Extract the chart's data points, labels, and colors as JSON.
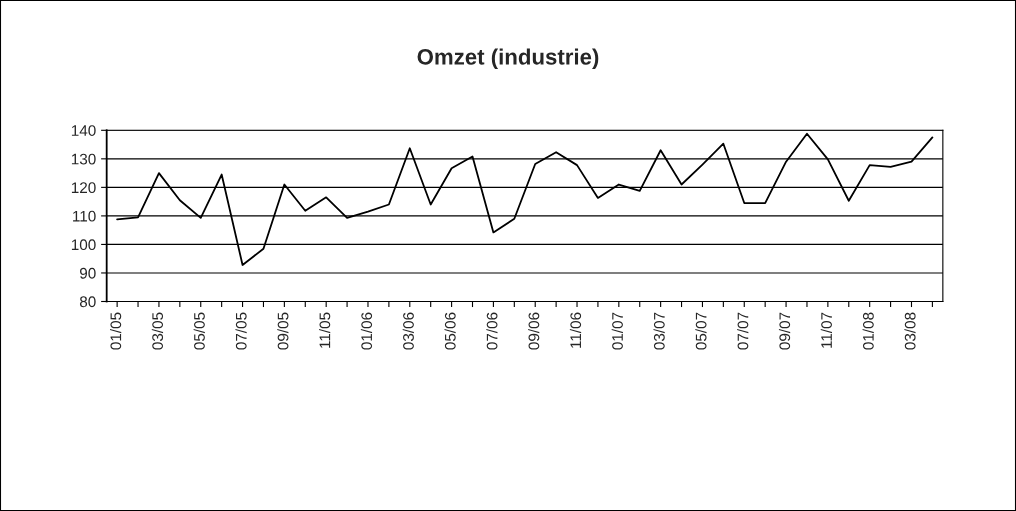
{
  "chart_data": {
    "type": "line",
    "title": "Omzet (industrie)",
    "categories": [
      "01/05",
      null,
      "03/05",
      null,
      "05/05",
      null,
      "07/05",
      null,
      "09/05",
      null,
      "11/05",
      null,
      "01/06",
      null,
      "03/06",
      null,
      "05/06",
      null,
      "07/06",
      null,
      "09/06",
      null,
      "11/06",
      null,
      "01/07",
      null,
      "03/07",
      null,
      "05/07",
      null,
      "07/07",
      null,
      "09/07",
      null,
      "11/07",
      null,
      "01/08",
      null,
      "03/08",
      null
    ],
    "series": [
      {
        "color": "#000000",
        "values": [
          108.8,
          109.5,
          125,
          115.5,
          109.3,
          124.5,
          92.8,
          98.5,
          121,
          111.8,
          116.5,
          109.3,
          111.5,
          114,
          133.7,
          114,
          126.7,
          130.8,
          104.2,
          109,
          128.2,
          132.3,
          127.8,
          116.3,
          121,
          118.8,
          133,
          121,
          128,
          135.3,
          114.5,
          114.5,
          129,
          138.8,
          129.8,
          115.3,
          127.8,
          127.2,
          129,
          137.5
        ]
      }
    ],
    "ylim": [
      80,
      140
    ],
    "yticks": [
      80,
      90,
      100,
      110,
      120,
      130,
      140
    ],
    "grid": "y",
    "legend": false,
    "marker": "none",
    "line_style": "solid"
  }
}
